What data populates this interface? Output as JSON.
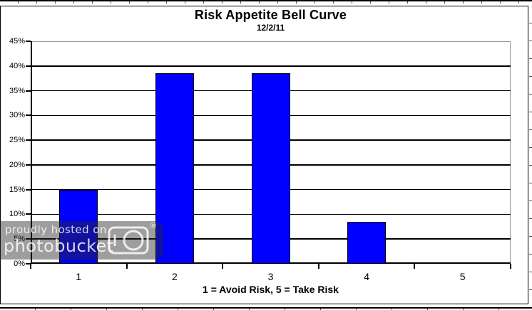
{
  "chart_data": {
    "type": "bar",
    "title": "Risk Appetite Bell Curve",
    "subtitle": "12/2/11",
    "categories": [
      "1",
      "2",
      "3",
      "4",
      "5"
    ],
    "values": [
      15,
      38.5,
      38.5,
      8.5,
      0
    ],
    "xlabel": "1 = Avoid Risk, 5 = Take Risk",
    "ylabel": "",
    "ylim": [
      0,
      45
    ],
    "ytick_step": 5,
    "ytick_labels": [
      "45%",
      "40%",
      "35%",
      "30%",
      "25%",
      "20%",
      "15%",
      "10%",
      "5%",
      "0%"
    ],
    "grid": true,
    "legend_position": "none",
    "bar_color": "#0000ff",
    "bar_border_color": "#000000",
    "gridline_color": "#000000",
    "plot_outer_border_color": "#999999"
  },
  "watermark": {
    "line1": "proudly hosted on",
    "line2": "photobucket",
    "registered": "®",
    "camera_icon": "camera-icon",
    "overlay_color": "rgba(40,40,40,0.45)",
    "text_color": "rgba(255,255,255,0.82)"
  }
}
